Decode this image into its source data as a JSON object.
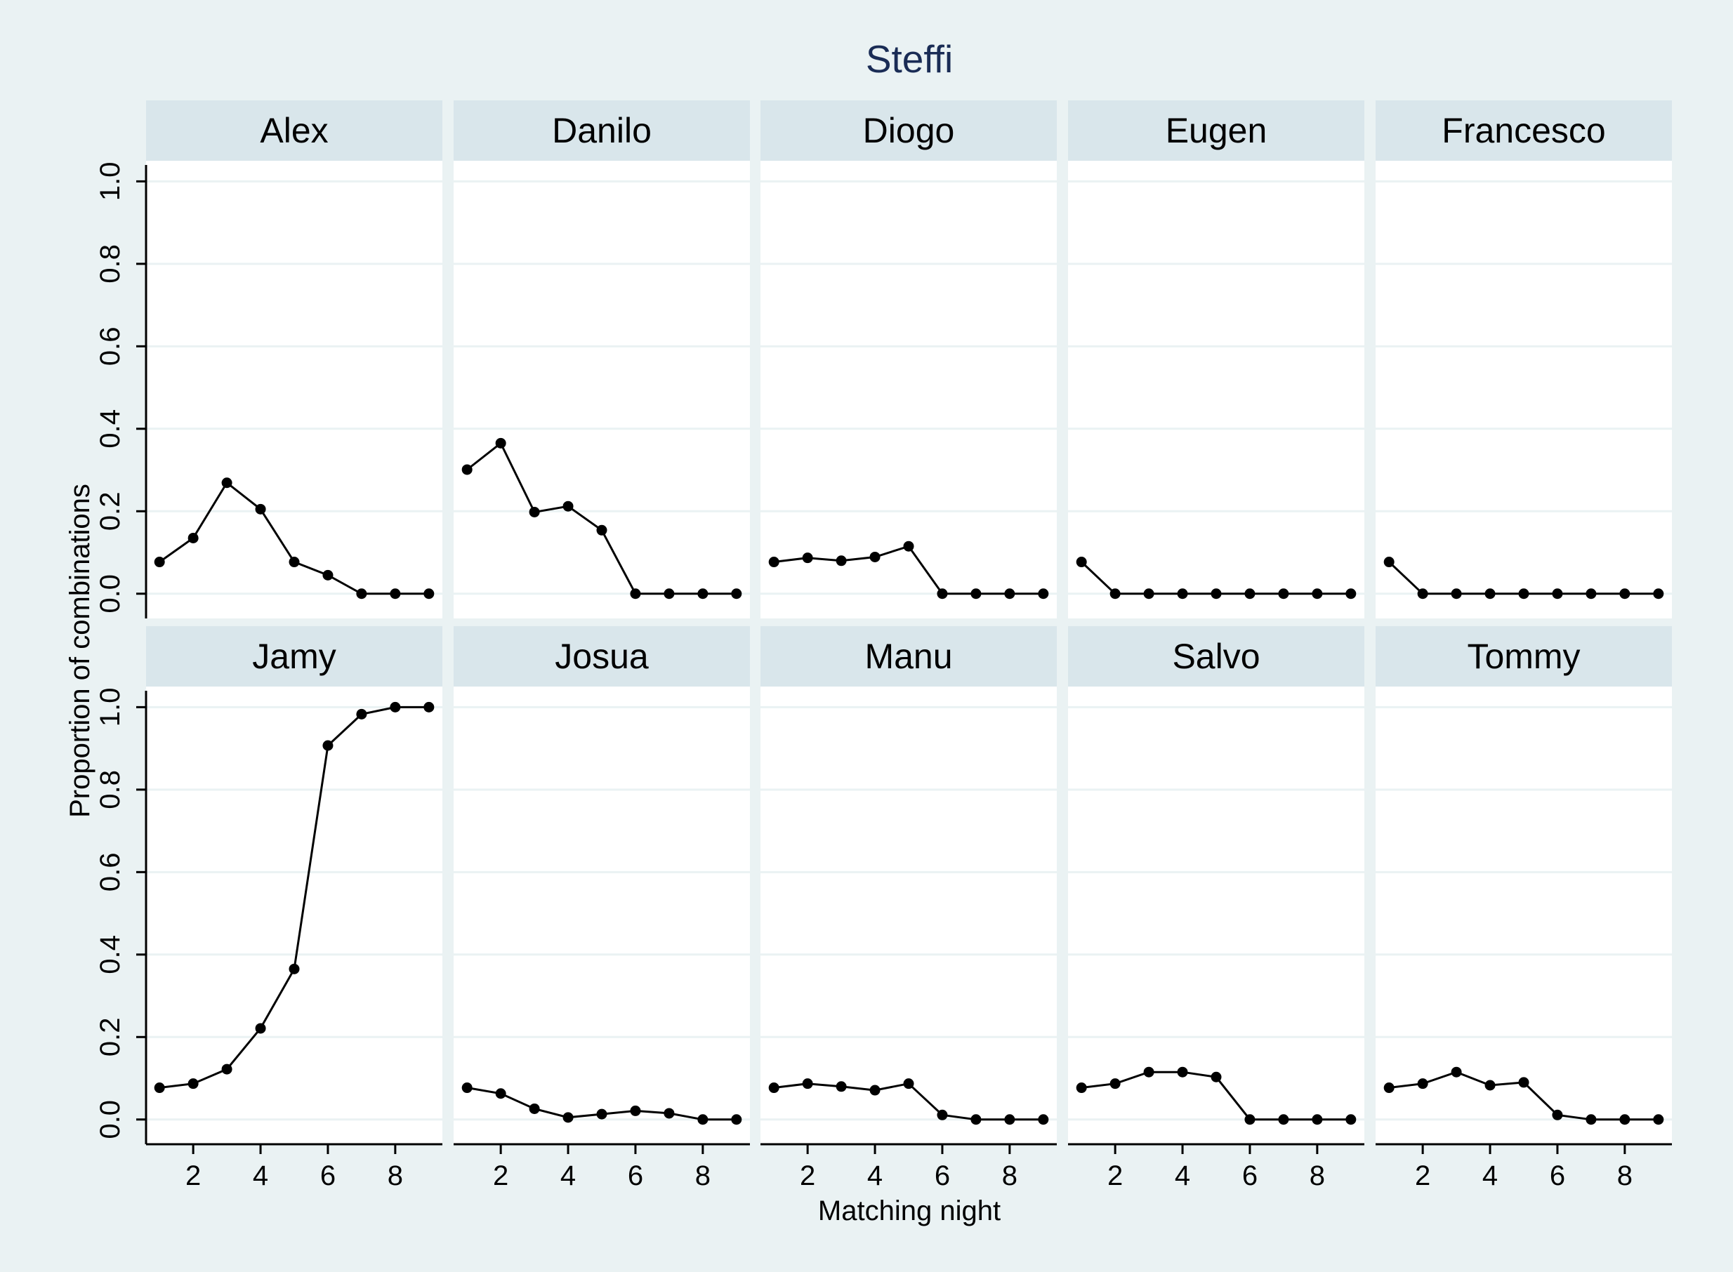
{
  "chart_data": {
    "type": "line",
    "title": "Steffi",
    "xlabel": "Matching night",
    "ylabel": "Proportion of combinations",
    "x": [
      1,
      2,
      3,
      4,
      5,
      6,
      7,
      8,
      9
    ],
    "xticks": [
      2,
      4,
      6,
      8
    ],
    "xlim": [
      0.6,
      9.4
    ],
    "yticks": [
      0.0,
      0.2,
      0.4,
      0.6,
      0.8,
      1.0
    ],
    "ytick_labels": [
      "0.0",
      "0.2",
      "0.4",
      "0.6",
      "0.8",
      "1.0"
    ],
    "xtick_labels": [
      "2",
      "4",
      "6",
      "8"
    ],
    "ylim": [
      -0.06,
      1.05
    ],
    "grid": true,
    "line_color": "#000000",
    "panels": [
      {
        "name": "Alex",
        "values": [
          0.077,
          0.135,
          0.269,
          0.205,
          0.077,
          0.045,
          0.0,
          0.0,
          0.0
        ]
      },
      {
        "name": "Danilo",
        "values": [
          0.301,
          0.365,
          0.198,
          0.212,
          0.154,
          0.0,
          0.0,
          0.0,
          0.0
        ]
      },
      {
        "name": "Diogo",
        "values": [
          0.077,
          0.087,
          0.08,
          0.089,
          0.115,
          0.0,
          0.0,
          0.0,
          0.0
        ]
      },
      {
        "name": "Eugen",
        "values": [
          0.077,
          0.0,
          0.0,
          0.0,
          0.0,
          0.0,
          0.0,
          0.0,
          0.0
        ]
      },
      {
        "name": "Francesco",
        "values": [
          0.077,
          0.0,
          0.0,
          0.0,
          0.0,
          0.0,
          0.0,
          0.0,
          0.0
        ]
      },
      {
        "name": "Jamy",
        "values": [
          0.077,
          0.087,
          0.122,
          0.221,
          0.365,
          0.907,
          0.983,
          1.0,
          1.0
        ]
      },
      {
        "name": "Josua",
        "values": [
          0.077,
          0.063,
          0.026,
          0.005,
          0.013,
          0.021,
          0.015,
          0.0,
          0.0
        ]
      },
      {
        "name": "Manu",
        "values": [
          0.077,
          0.087,
          0.08,
          0.071,
          0.087,
          0.011,
          0.0,
          0.0,
          0.0
        ]
      },
      {
        "name": "Salvo",
        "values": [
          0.077,
          0.087,
          0.115,
          0.115,
          0.103,
          0.0,
          0.0,
          0.0,
          0.0
        ]
      },
      {
        "name": "Tommy",
        "values": [
          0.077,
          0.087,
          0.115,
          0.083,
          0.09,
          0.011,
          0.0,
          0.0,
          0.0
        ]
      }
    ]
  }
}
